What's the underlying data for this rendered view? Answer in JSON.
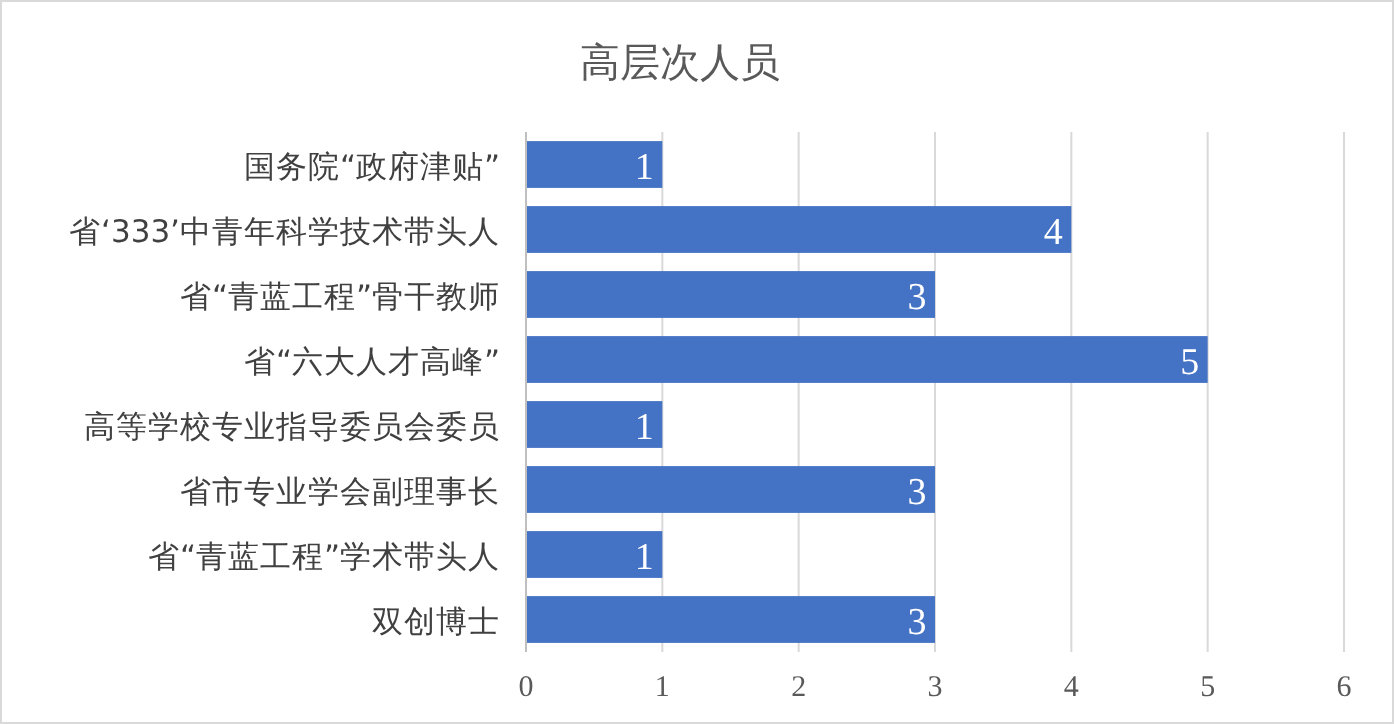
{
  "chart_data": {
    "type": "bar",
    "orientation": "horizontal",
    "title": "高层次人员",
    "categories": [
      "国务院“政府津贴”",
      "省‘333’中青年科学技术带头人",
      "省“青蓝工程”骨干教师",
      "省“六大人才高峰”",
      "高等学校专业指导委员会委员",
      "省市专业学会副理事长",
      "省“青蓝工程”学术带头人",
      "双创博士"
    ],
    "values": [
      1,
      4,
      3,
      5,
      1,
      3,
      1,
      3
    ],
    "color": "#4472c4",
    "xlim": [
      0,
      6
    ],
    "xticks": [
      0,
      1,
      2,
      3,
      4,
      5,
      6
    ],
    "grid": "x",
    "data_labels": true
  }
}
